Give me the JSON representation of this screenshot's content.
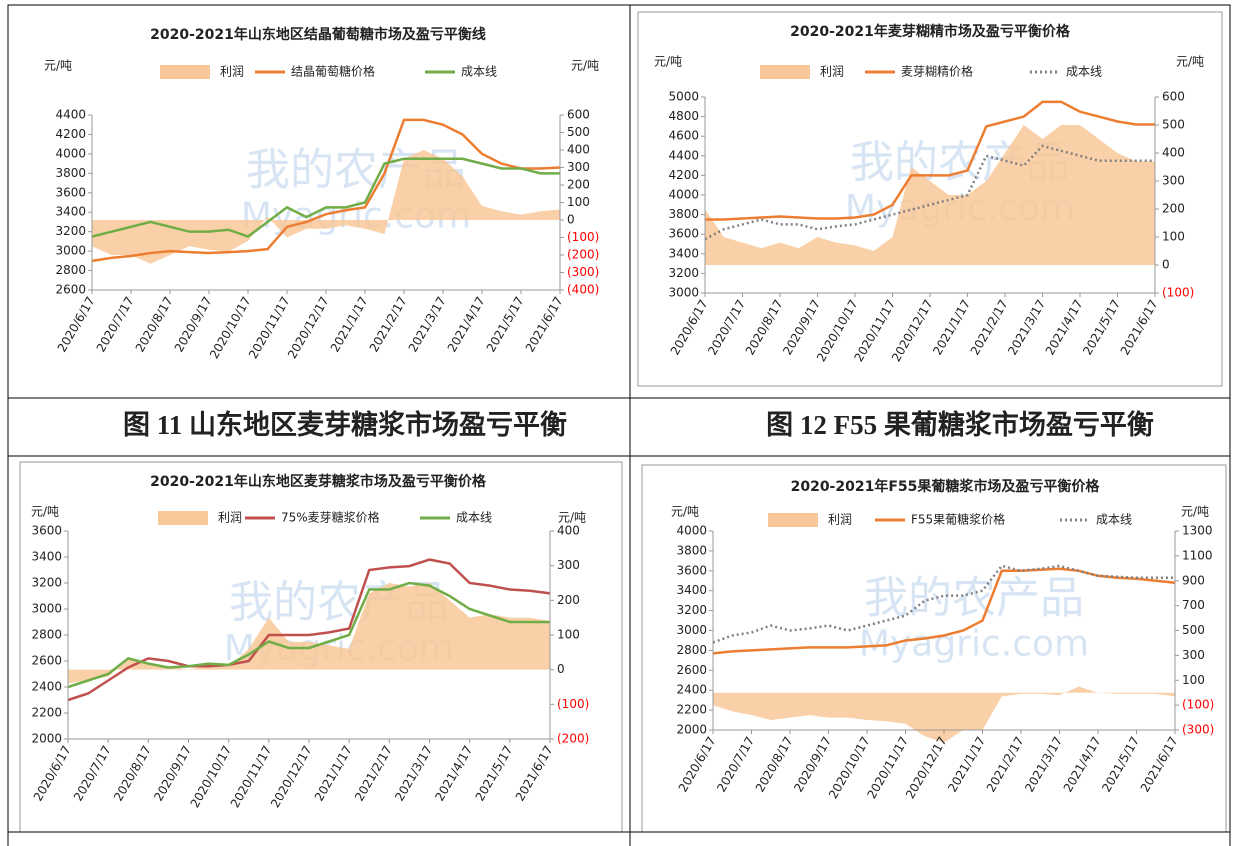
{
  "captions": [
    "图 11 山东地区麦芽糖浆市场盈亏平衡",
    "图 12 F55 果葡糖浆市场盈亏平衡"
  ],
  "watermark": {
    "text": "我的农产品",
    "url": "Myagric.com"
  },
  "chart_data": [
    {
      "type": "line",
      "title": "2020-2021年山东地区结晶葡萄糖市场及盈亏平衡线",
      "y_label": "元/吨",
      "y2_label": "元/吨",
      "categories": [
        "2020/6/17",
        null,
        "2020/7/17",
        null,
        "2020/8/17",
        null,
        "2020/9/17",
        null,
        "2020/10/17",
        null,
        "2020/11/17",
        null,
        "2020/12/17",
        null,
        "2021/1/17",
        null,
        "2021/2/17",
        null,
        "2021/3/17",
        null,
        "2021/4/17",
        null,
        "2021/5/17",
        null,
        "2021/6/17"
      ],
      "ylim": [
        2600,
        4400
      ],
      "yticks": [
        2600,
        2800,
        3000,
        3200,
        3400,
        3600,
        3800,
        4000,
        4200,
        4400
      ],
      "y2lim": [
        -400,
        600
      ],
      "y2ticks": [
        {
          "value": -400,
          "label": "(400)"
        },
        {
          "value": -300,
          "label": "(300)"
        },
        {
          "value": -200,
          "label": "(200)"
        },
        {
          "value": -100,
          "label": "(100)"
        },
        0,
        100,
        200,
        300,
        400,
        500,
        600
      ],
      "negative_tick_color": "#ff0000",
      "series": [
        {
          "name": "利润",
          "kind": "area",
          "axis": "y2",
          "color": "#f8c898",
          "values": [
            -150,
            -200,
            -200,
            -250,
            -200,
            -150,
            -170,
            -180,
            -120,
            20,
            -100,
            -50,
            -50,
            -30,
            -50,
            -80,
            350,
            400,
            350,
            250,
            80,
            50,
            30,
            50,
            60
          ]
        },
        {
          "name": "结晶葡萄糖价格",
          "kind": "line",
          "color": "#ed7d31",
          "values": [
            2900,
            2930,
            2950,
            2980,
            3000,
            2990,
            2980,
            2990,
            3000,
            3020,
            3250,
            3300,
            3380,
            3420,
            3450,
            3800,
            4350,
            4350,
            4300,
            4200,
            4000,
            3900,
            3850,
            3850,
            3860
          ]
        },
        {
          "name": "成本线",
          "kind": "line",
          "color": "#70ad47",
          "values": [
            3150,
            3200,
            3250,
            3300,
            3250,
            3200,
            3200,
            3220,
            3150,
            3300,
            3450,
            3350,
            3450,
            3450,
            3500,
            3900,
            3950,
            3950,
            3950,
            3950,
            3900,
            3850,
            3850,
            3800,
            3800
          ]
        }
      ]
    },
    {
      "type": "line",
      "title": "2020-2021年麦芽糊精市场及盈亏平衡价格",
      "y_label": "元/吨",
      "y2_label": "元/吨",
      "categories": [
        "2020/6/17",
        null,
        "2020/7/17",
        null,
        "2020/8/17",
        null,
        "2020/9/17",
        null,
        "2020/10/17",
        null,
        "2020/11/17",
        null,
        "2020/12/17",
        null,
        "2021/1/17",
        null,
        "2021/2/17",
        null,
        "2021/3/17",
        null,
        "2021/4/17",
        null,
        "2021/5/17",
        null,
        "2021/6/17"
      ],
      "ylim": [
        3000,
        5000
      ],
      "yticks": [
        3000,
        3200,
        3400,
        3600,
        3800,
        4000,
        4200,
        4400,
        4600,
        4800,
        5000
      ],
      "y2lim": [
        -100,
        600
      ],
      "y2ticks": [
        {
          "value": -100,
          "label": "(100)"
        },
        0,
        100,
        200,
        300,
        400,
        500,
        600
      ],
      "negative_tick_color": "#ff0000",
      "series": [
        {
          "name": "利润",
          "kind": "area",
          "axis": "y2",
          "color": "#f8c898",
          "values": [
            200,
            100,
            80,
            60,
            80,
            60,
            100,
            80,
            70,
            50,
            100,
            350,
            300,
            250,
            250,
            300,
            400,
            500,
            450,
            500,
            500,
            450,
            400,
            370,
            370
          ]
        },
        {
          "name": "麦芽糊精价格",
          "kind": "line",
          "color": "#ed7d31",
          "values": [
            3750,
            3750,
            3760,
            3770,
            3780,
            3770,
            3760,
            3760,
            3770,
            3800,
            3900,
            4200,
            4200,
            4200,
            4250,
            4700,
            4750,
            4800,
            4950,
            4950,
            4850,
            4800,
            4750,
            4720,
            4720
          ]
        },
        {
          "name": "成本线",
          "kind": "line",
          "dash": "dotted",
          "color": "#808080",
          "values": [
            3550,
            3650,
            3700,
            3750,
            3700,
            3700,
            3650,
            3680,
            3700,
            3750,
            3800,
            3850,
            3900,
            3950,
            4000,
            4400,
            4350,
            4300,
            4500,
            4450,
            4400,
            4350,
            4350,
            4350,
            4350
          ]
        }
      ]
    },
    {
      "type": "line",
      "title": "2020-2021年山东地区麦芽糖浆市场及盈亏平衡价格",
      "y_label": "元/吨",
      "y2_label": "元/吨",
      "categories": [
        "2020/6/17",
        null,
        "2020/7/17",
        null,
        "2020/8/17",
        null,
        "2020/9/17",
        null,
        "2020/10/17",
        null,
        "2020/11/17",
        null,
        "2020/12/17",
        null,
        "2021/1/17",
        null,
        "2021/2/17",
        null,
        "2021/3/17",
        null,
        "2021/4/17",
        null,
        "2021/5/17",
        null,
        "2021/6/17"
      ],
      "ylim": [
        2000,
        3600
      ],
      "yticks": [
        2000,
        2200,
        2400,
        2600,
        2800,
        3000,
        3200,
        3400,
        3600
      ],
      "y2lim": [
        -200,
        400
      ],
      "y2ticks": [
        {
          "value": -200,
          "label": "(200)"
        },
        {
          "value": -100,
          "label": "(100)"
        },
        0,
        100,
        200,
        300,
        400
      ],
      "negative_tick_color": "#ff0000",
      "series": [
        {
          "name": "利润",
          "kind": "area",
          "axis": "y2",
          "color": "#f8c898",
          "values": [
            -40,
            -30,
            -20,
            30,
            20,
            10,
            0,
            10,
            10,
            60,
            150,
            80,
            80,
            70,
            60,
            220,
            250,
            240,
            250,
            200,
            150,
            160,
            150,
            150,
            140
          ]
        },
        {
          "name": "75%麦芽糖浆价格",
          "kind": "line",
          "color": "#c0504d",
          "values": [
            2300,
            2350,
            2450,
            2550,
            2620,
            2600,
            2560,
            2560,
            2570,
            2600,
            2800,
            2800,
            2800,
            2820,
            2850,
            3300,
            3320,
            3330,
            3380,
            3350,
            3200,
            3180,
            3150,
            3140,
            3120
          ]
        },
        {
          "name": "成本线",
          "kind": "line",
          "color": "#70ad47",
          "values": [
            2400,
            2450,
            2500,
            2620,
            2580,
            2550,
            2560,
            2580,
            2570,
            2650,
            2750,
            2700,
            2700,
            2750,
            2800,
            3150,
            3150,
            3200,
            3180,
            3100,
            3000,
            2950,
            2900,
            2900,
            2900
          ]
        }
      ]
    },
    {
      "type": "line",
      "title": "2020-2021年F55果葡糖浆市场及盈亏平衡价格",
      "y_label": "元/吨",
      "y2_label": "元/吨",
      "categories": [
        "2020/6/17",
        null,
        "2020/7/17",
        null,
        "2020/8/17",
        null,
        "2020/9/17",
        null,
        "2020/10/17",
        null,
        "2020/11/17",
        null,
        "2020/12/17",
        null,
        "2021/1/17",
        null,
        "2021/2/17",
        null,
        "2021/3/17",
        null,
        "2021/4/17",
        null,
        "2021/5/17",
        null,
        "2021/6/17"
      ],
      "ylim": [
        2000,
        4000
      ],
      "yticks": [
        2000,
        2200,
        2400,
        2600,
        2800,
        3000,
        3200,
        3400,
        3600,
        3800,
        4000
      ],
      "y2lim": [
        -300,
        1300
      ],
      "y2ticks": [
        {
          "value": -300,
          "label": "(300)"
        },
        {
          "value": -100,
          "label": "(100)"
        },
        100,
        300,
        500,
        700,
        900,
        1100,
        1300
      ],
      "negative_tick_color": "#ff0000",
      "series": [
        {
          "name": "利润",
          "kind": "area",
          "axis": "y2",
          "color": "#f8c898",
          "values": [
            -100,
            -150,
            -180,
            -220,
            -200,
            -180,
            -200,
            -200,
            -220,
            -230,
            -250,
            -350,
            -400,
            -300,
            -300,
            -30,
            -10,
            -10,
            -20,
            50,
            0,
            -10,
            -10,
            -10,
            -30
          ]
        },
        {
          "name": "F55果葡糖浆价格",
          "kind": "line",
          "color": "#ed7d31",
          "values": [
            2770,
            2790,
            2800,
            2810,
            2820,
            2830,
            2830,
            2830,
            2840,
            2850,
            2900,
            2920,
            2950,
            3000,
            3100,
            3600,
            3600,
            3610,
            3620,
            3600,
            3550,
            3530,
            3520,
            3500,
            3480
          ]
        },
        {
          "name": "成本线",
          "kind": "line",
          "dash": "dotted",
          "color": "#808080",
          "values": [
            2880,
            2950,
            2980,
            3050,
            3000,
            3020,
            3050,
            3000,
            3050,
            3100,
            3150,
            3300,
            3350,
            3350,
            3400,
            3650,
            3600,
            3620,
            3650,
            3600,
            3550,
            3540,
            3530,
            3530,
            3530
          ]
        }
      ]
    }
  ]
}
